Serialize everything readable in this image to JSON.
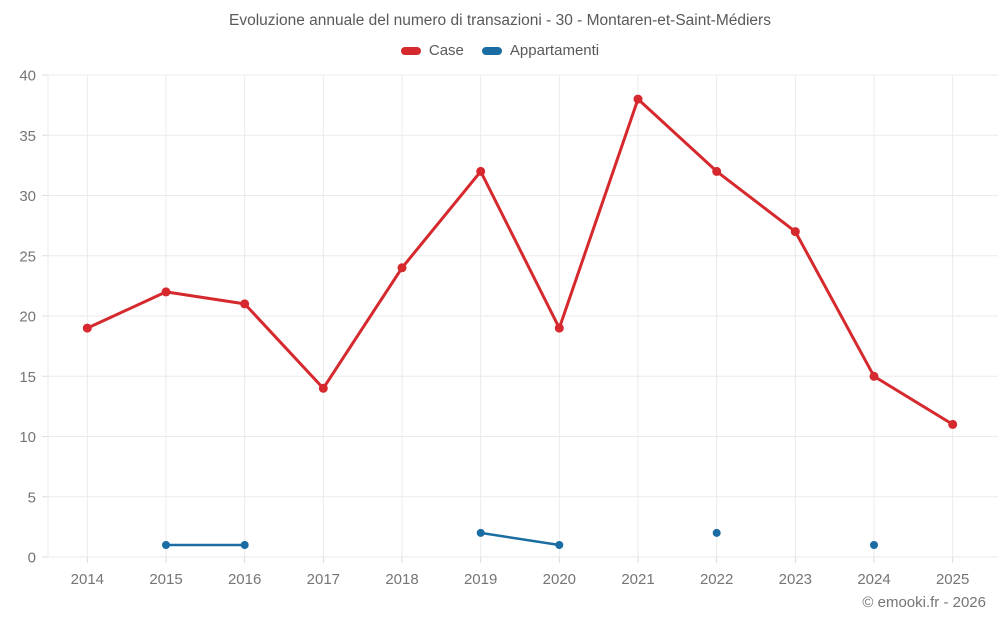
{
  "chart_data": {
    "type": "line",
    "title": "Evoluzione annuale del numero di transazioni - 30 - Montaren-et-Saint-Médiers",
    "categories": [
      "2014",
      "2015",
      "2016",
      "2017",
      "2018",
      "2019",
      "2020",
      "2021",
      "2022",
      "2023",
      "2024",
      "2025"
    ],
    "series": [
      {
        "name": "Case",
        "color": "#d5292e",
        "values": [
          19,
          22,
          21,
          14,
          24,
          32,
          19,
          38,
          32,
          27,
          15,
          11
        ]
      },
      {
        "name": "Appartamenti",
        "color": "#1a6da3",
        "values": [
          null,
          1,
          1,
          null,
          null,
          2,
          1,
          null,
          2,
          null,
          1,
          null
        ]
      }
    ],
    "ylim": [
      0,
      40
    ],
    "yticks": [
      0,
      5,
      10,
      15,
      20,
      25,
      30,
      35,
      40
    ],
    "grid": true,
    "legend_position": "top",
    "span_gaps": false
  },
  "colors": {
    "grid": "#ebebeb",
    "axis_tick": "#dddddd",
    "axis_text": "#757575",
    "title_text": "#58595b"
  },
  "footer": {
    "copyright": "© emooki.fr - 2026"
  }
}
